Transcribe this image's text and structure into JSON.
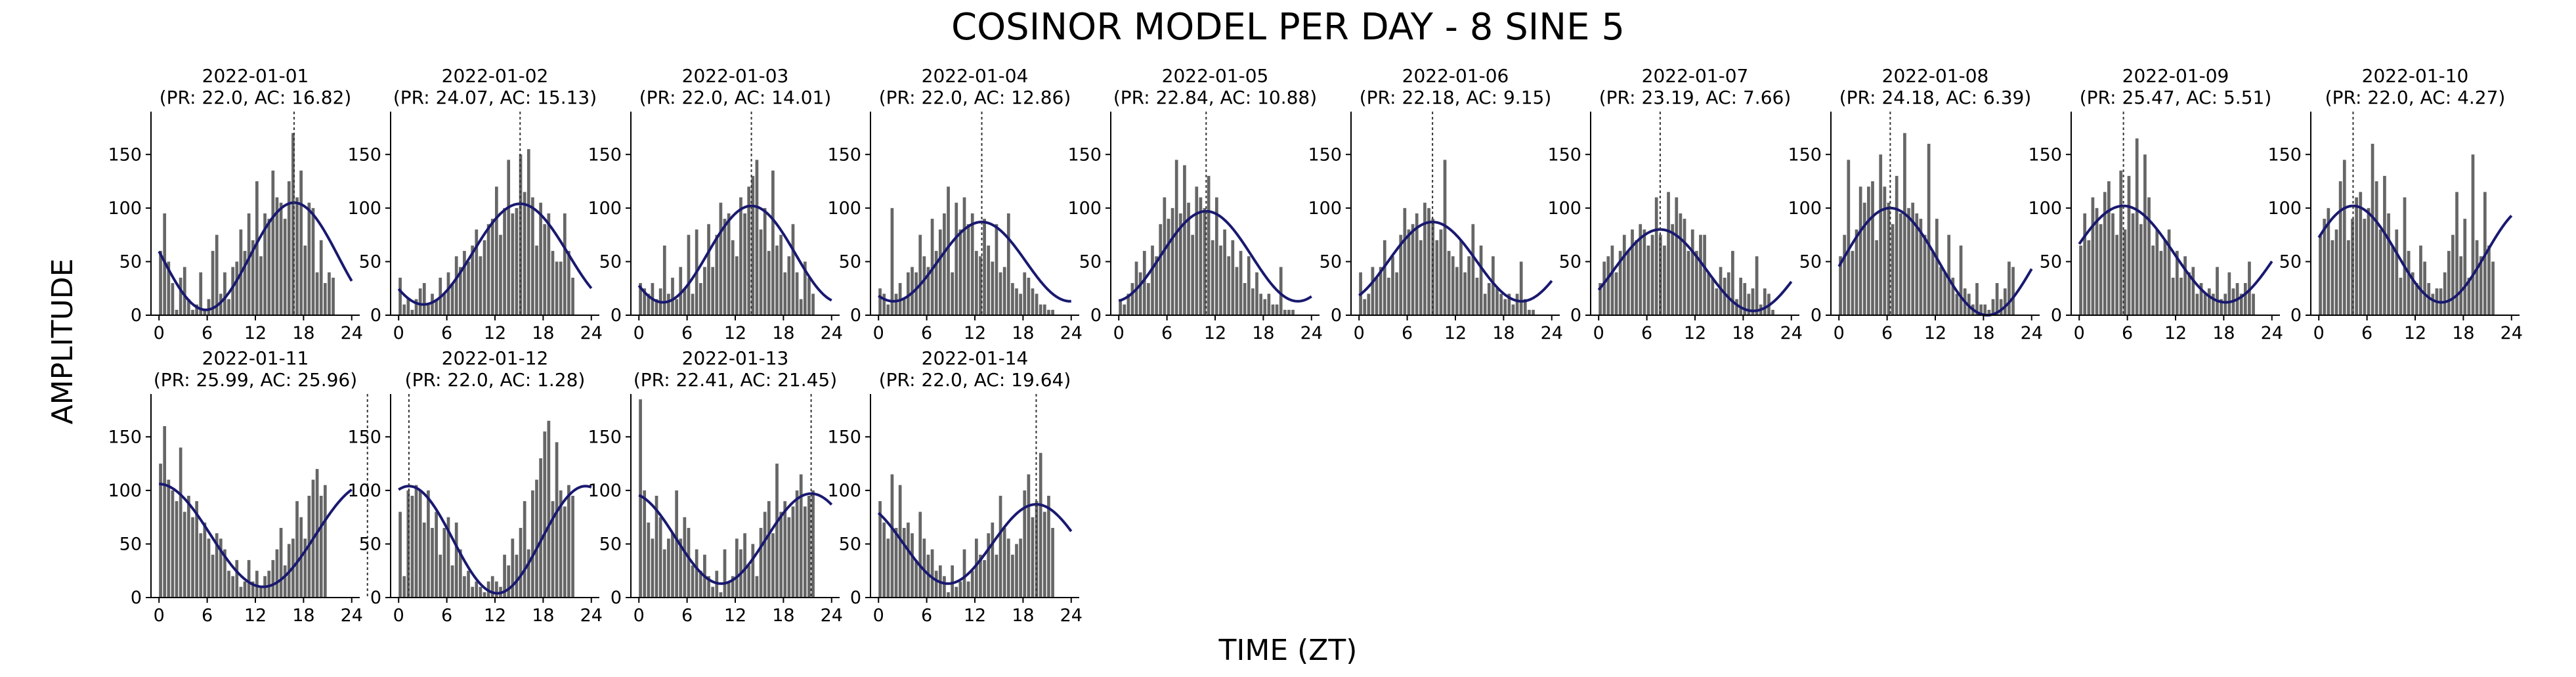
{
  "figure": {
    "title": "COSINOR MODEL PER DAY - 8 SINE 5",
    "xlabel": "TIME (ZT)",
    "ylabel": "AMPLITUDE"
  },
  "colors": {
    "bar": "#666666",
    "curve": "#191970",
    "acrophase_line": "#333333",
    "axis": "#000000"
  },
  "chart_data": {
    "type": "bar",
    "overlay": "cosinor-fit-line",
    "grid": false,
    "legend": "none",
    "xlim": [
      -1,
      25
    ],
    "ylim": [
      0,
      190
    ],
    "xticks": [
      0,
      6,
      12,
      18,
      24
    ],
    "yticks": [
      0,
      50,
      100,
      150
    ],
    "bin_width_hours": 0.5,
    "panels": [
      {
        "title": "2022-01-01",
        "subtitle": "(PR: 22.0, AC: 16.82)",
        "period": 22.0,
        "acrophase": 16.82,
        "fit": {
          "mesor": 55,
          "amplitude": 50
        },
        "values": [
          60,
          95,
          50,
          30,
          5,
          35,
          45,
          15,
          5,
          10,
          40,
          5,
          15,
          60,
          75,
          20,
          40,
          15,
          45,
          50,
          80,
          60,
          95,
          70,
          125,
          55,
          95,
          90,
          135,
          110,
          105,
          90,
          125,
          170,
          110,
          135,
          65,
          105,
          100,
          40,
          70,
          30,
          40,
          35
        ]
      },
      {
        "title": "2022-01-02",
        "subtitle": "(PR: 24.07, AC: 15.13)",
        "period": 24.07,
        "acrophase": 15.13,
        "fit": {
          "mesor": 57,
          "amplitude": 47
        },
        "values": [
          35,
          10,
          15,
          5,
          15,
          25,
          30,
          10,
          20,
          15,
          35,
          20,
          40,
          30,
          55,
          45,
          60,
          50,
          65,
          80,
          55,
          70,
          85,
          90,
          120,
          75,
          100,
          145,
          95,
          100,
          150,
          115,
          155,
          110,
          65,
          105,
          85,
          95,
          60,
          50,
          50,
          95,
          60,
          35
        ]
      },
      {
        "title": "2022-01-03",
        "subtitle": "(PR: 22.0, AC: 14.01)",
        "period": 22.0,
        "acrophase": 14.01,
        "fit": {
          "mesor": 57,
          "amplitude": 45
        },
        "values": [
          30,
          25,
          20,
          30,
          15,
          25,
          65,
          20,
          35,
          15,
          45,
          25,
          75,
          20,
          80,
          30,
          45,
          85,
          45,
          75,
          105,
          90,
          95,
          70,
          55,
          110,
          95,
          120,
          130,
          145,
          80,
          100,
          60,
          135,
          65,
          75,
          40,
          55,
          85,
          40,
          15,
          50,
          35,
          20
        ]
      },
      {
        "title": "2022-01-04",
        "subtitle": "(PR: 22.0, AC: 12.86)",
        "period": 22.0,
        "acrophase": 12.86,
        "fit": {
          "mesor": 50,
          "amplitude": 37
        },
        "values": [
          25,
          20,
          10,
          100,
          20,
          30,
          15,
          40,
          45,
          40,
          75,
          55,
          45,
          90,
          60,
          80,
          95,
          120,
          40,
          105,
          80,
          110,
          85,
          95,
          60,
          55,
          90,
          65,
          50,
          85,
          40,
          45,
          95,
          30,
          25,
          20,
          40,
          35,
          25,
          20,
          10,
          10,
          5,
          5
        ]
      },
      {
        "title": "2022-01-05",
        "subtitle": "(PR: 22.84, AC: 10.88)",
        "period": 22.84,
        "acrophase": 10.88,
        "fit": {
          "mesor": 55,
          "amplitude": 42
        },
        "values": [
          15,
          10,
          20,
          30,
          50,
          40,
          60,
          30,
          65,
          55,
          85,
          110,
          90,
          100,
          145,
          95,
          140,
          105,
          75,
          120,
          110,
          100,
          130,
          70,
          110,
          65,
          80,
          55,
          70,
          45,
          60,
          30,
          55,
          25,
          40,
          20,
          15,
          20,
          10,
          10,
          45,
          5,
          5,
          5
        ]
      },
      {
        "title": "2022-01-06",
        "subtitle": "(PR: 22.18, AC: 9.15)",
        "period": 22.18,
        "acrophase": 9.15,
        "fit": {
          "mesor": 50,
          "amplitude": 37
        },
        "values": [
          40,
          15,
          20,
          45,
          35,
          45,
          70,
          35,
          55,
          40,
          75,
          100,
          80,
          85,
          95,
          70,
          105,
          100,
          90,
          70,
          80,
          145,
          60,
          55,
          45,
          70,
          40,
          55,
          85,
          35,
          65,
          20,
          30,
          55,
          25,
          20,
          15,
          20,
          10,
          20,
          50,
          15,
          5,
          5
        ]
      },
      {
        "title": "2022-01-07",
        "subtitle": "(PR: 23.19, AC: 7.66)",
        "period": 23.19,
        "acrophase": 7.66,
        "fit": {
          "mesor": 42,
          "amplitude": 38
        },
        "values": [
          30,
          50,
          55,
          65,
          40,
          60,
          75,
          60,
          80,
          70,
          85,
          80,
          65,
          75,
          110,
          75,
          65,
          115,
          85,
          110,
          95,
          90,
          60,
          80,
          60,
          75,
          75,
          40,
          35,
          25,
          45,
          35,
          40,
          60,
          15,
          35,
          30,
          20,
          25,
          55,
          10,
          25,
          20,
          5
        ]
      },
      {
        "title": "2022-01-08",
        "subtitle": "(PR: 24.18, AC: 6.39)",
        "period": 24.18,
        "acrophase": 6.39,
        "fit": {
          "mesor": 50,
          "amplitude": 50
        },
        "values": [
          55,
          75,
          145,
          60,
          80,
          120,
          105,
          120,
          125,
          70,
          150,
          120,
          105,
          85,
          130,
          95,
          170,
          100,
          105,
          95,
          90,
          75,
          160,
          60,
          90,
          45,
          40,
          75,
          35,
          20,
          65,
          25,
          20,
          10,
          30,
          10,
          10,
          5,
          15,
          30,
          15,
          25,
          50,
          45
        ]
      },
      {
        "title": "2022-01-09",
        "subtitle": "(PR: 25.47, AC: 5.51)",
        "period": 25.47,
        "acrophase": 5.51,
        "fit": {
          "mesor": 57,
          "amplitude": 45
        },
        "values": [
          65,
          95,
          70,
          110,
          100,
          85,
          115,
          125,
          95,
          75,
          135,
          80,
          130,
          95,
          165,
          85,
          150,
          110,
          65,
          80,
          60,
          70,
          80,
          35,
          60,
          35,
          55,
          40,
          45,
          20,
          30,
          20,
          25,
          20,
          45,
          15,
          20,
          40,
          25,
          30,
          20,
          30,
          50,
          20
        ]
      },
      {
        "title": "2022-01-10",
        "subtitle": "(PR: 22.0, AC: 4.27)",
        "period": 22.0,
        "acrophase": 4.27,
        "fit": {
          "mesor": 57,
          "amplitude": 45
        },
        "values": [
          75,
          90,
          100,
          70,
          80,
          125,
          145,
          70,
          90,
          110,
          115,
          90,
          100,
          160,
          125,
          80,
          130,
          95,
          65,
          80,
          35,
          110,
          60,
          40,
          30,
          65,
          50,
          30,
          20,
          25,
          25,
          40,
          60,
          75,
          115,
          55,
          90,
          35,
          150,
          70,
          55,
          115,
          65,
          50
        ]
      },
      {
        "title": "2022-01-11",
        "subtitle": "(PR: 25.99, AC: 25.96)",
        "period": 25.99,
        "acrophase": 25.96,
        "fit": {
          "mesor": 58,
          "amplitude": 48
        },
        "values": [
          125,
          160,
          110,
          100,
          90,
          140,
          80,
          95,
          75,
          90,
          60,
          70,
          55,
          40,
          60,
          55,
          45,
          25,
          20,
          35,
          10,
          15,
          35,
          15,
          25,
          10,
          20,
          25,
          35,
          45,
          65,
          30,
          50,
          55,
          90,
          75,
          55,
          95,
          110,
          120,
          95,
          105,
          0,
          0
        ]
      },
      {
        "title": "2022-01-12",
        "subtitle": "(PR: 22.0, AC: 1.28)",
        "period": 22.0,
        "acrophase": 1.28,
        "fit": {
          "mesor": 54,
          "amplitude": 50
        },
        "values": [
          80,
          20,
          100,
          95,
          105,
          100,
          70,
          100,
          65,
          80,
          40,
          65,
          75,
          30,
          70,
          45,
          20,
          25,
          10,
          15,
          10,
          5,
          15,
          20,
          15,
          10,
          40,
          30,
          55,
          40,
          65,
          90,
          45,
          100,
          110,
          130,
          155,
          165,
          90,
          145,
          100,
          85,
          105,
          95
        ]
      },
      {
        "title": "2022-01-13",
        "subtitle": "(PR: 22.41, AC: 21.45)",
        "period": 22.41,
        "acrophase": 21.45,
        "fit": {
          "mesor": 55,
          "amplitude": 42
        },
        "values": [
          185,
          100,
          70,
          55,
          95,
          75,
          45,
          55,
          60,
          100,
          55,
          75,
          65,
          30,
          45,
          25,
          40,
          20,
          10,
          25,
          5,
          45,
          15,
          20,
          55,
          45,
          60,
          30,
          50,
          20,
          65,
          80,
          90,
          60,
          125,
          80,
          90,
          75,
          85,
          100,
          115,
          85,
          95,
          100
        ]
      },
      {
        "title": "2022-01-14",
        "subtitle": "(PR: 22.0, AC: 19.64)",
        "period": 22.0,
        "acrophase": 19.64,
        "fit": {
          "mesor": 50,
          "amplitude": 37
        },
        "values": [
          90,
          70,
          55,
          115,
          65,
          105,
          65,
          70,
          60,
          35,
          80,
          55,
          40,
          45,
          25,
          30,
          20,
          5,
          30,
          10,
          15,
          45,
          15,
          25,
          55,
          40,
          35,
          60,
          70,
          40,
          95,
          65,
          55,
          40,
          50,
          55,
          100,
          115,
          75,
          90,
          135,
          80,
          95,
          65
        ]
      }
    ]
  }
}
